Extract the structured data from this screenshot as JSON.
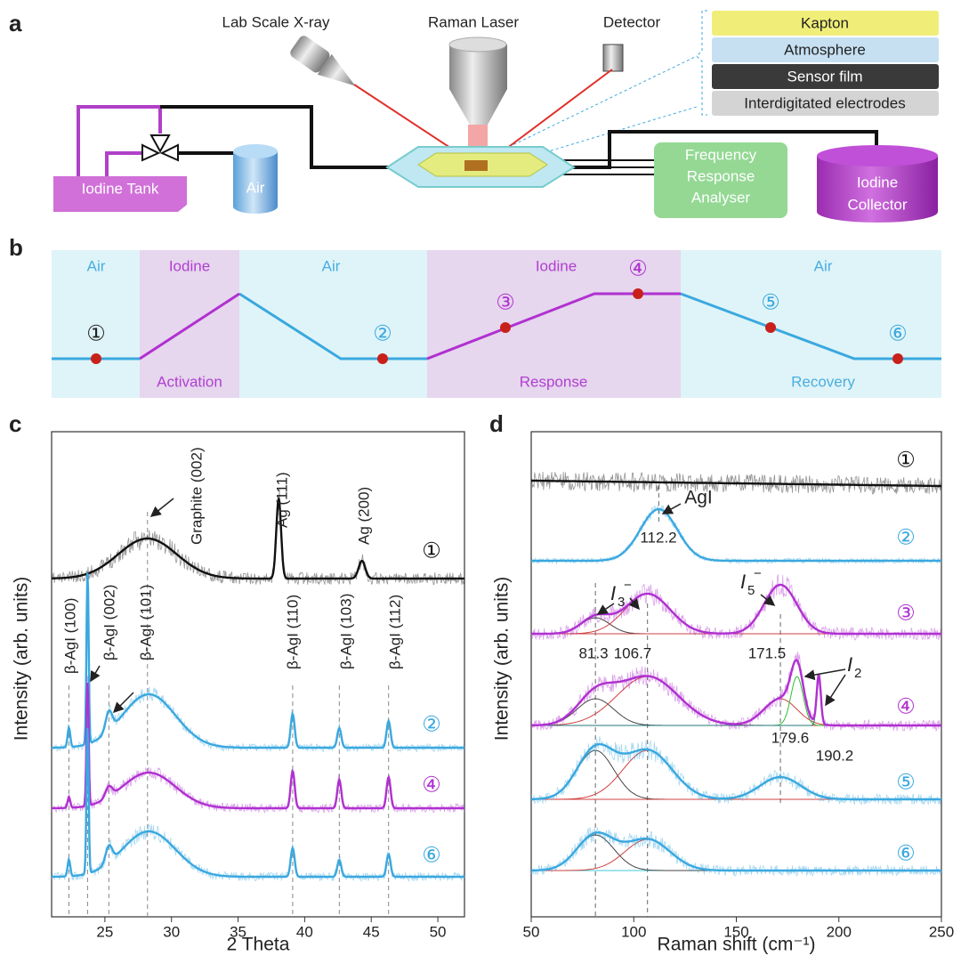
{
  "diagram": {
    "a": {
      "label": "a",
      "sources": [
        "Lab Scale X-ray",
        "Raman Laser",
        "Detector"
      ],
      "layers": [
        "Kapton",
        "Atmosphere",
        "Sensor film",
        "Interdigitated electrodes"
      ],
      "tank": "Iodine Tank",
      "air": "Air",
      "analyser": [
        "Frequency",
        "Response",
        "Analyser"
      ],
      "collector": [
        "Iodine",
        "Collector"
      ]
    },
    "b": {
      "label": "b",
      "phases": [
        "Air",
        "Iodine",
        "Air",
        "Iodine",
        "Air"
      ],
      "stages": [
        "Activation",
        "Response",
        "Recovery"
      ],
      "states": [
        "①",
        "②",
        "③",
        "④",
        "⑤",
        "⑥"
      ]
    }
  },
  "chart_data": [
    {
      "type": "line",
      "label": "c",
      "xlabel": "2 Theta",
      "ylabel": "Intensity (arb. units)",
      "xlim": [
        21,
        52
      ],
      "xticks": [
        25,
        30,
        35,
        40,
        45,
        50
      ],
      "annotations": [
        "Graphite (002)",
        "Ag (111)",
        "Ag (200)",
        "β-AgI (100)",
        "β-AgI (002)",
        "β-AgI (101)",
        "β-AgI (110)",
        "β-AgI (103)",
        "β-AgI (112)"
      ],
      "series": [
        {
          "name": "①",
          "color": "#111111"
        },
        {
          "name": "②",
          "color": "#3aa8df"
        },
        {
          "name": "④",
          "color": "#b030d0"
        },
        {
          "name": "⑥",
          "color": "#3aa8df"
        }
      ]
    },
    {
      "type": "line",
      "label": "d",
      "xlabel": "Raman shift (cm⁻¹)",
      "ylabel": "Intensity (arb. units)",
      "xlim": [
        50,
        250
      ],
      "xticks": [
        50,
        100,
        150,
        200,
        250
      ],
      "annotations": [
        "AgI",
        "I",
        "3",
        "−",
        "I",
        "5",
        "−",
        "I",
        "2"
      ],
      "peak_positions": [
        112.2,
        81.3,
        106.7,
        171.5,
        179.6,
        190.2
      ],
      "series": [
        {
          "name": "①",
          "color": "#111111"
        },
        {
          "name": "②",
          "color": "#3aa8df"
        },
        {
          "name": "③",
          "color": "#b030d0"
        },
        {
          "name": "④",
          "color": "#b030d0"
        },
        {
          "name": "⑤",
          "color": "#3aa8df"
        },
        {
          "name": "⑥",
          "color": "#3aa8df"
        }
      ]
    }
  ]
}
